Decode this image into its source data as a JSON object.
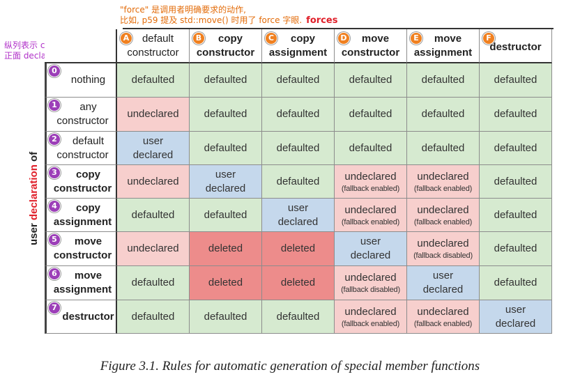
{
  "annotations": {
    "top_line1": "\"force\" 是调用者明确要求的动作,",
    "top_line2": "比如, p59 提及 std::move() 时用了 force 字眼.",
    "top_forces": "forces",
    "left_line1": "纵列表示 class 作者是否",
    "left_line2": "正面 declare 了此函数."
  },
  "side_label": {
    "part1": "user ",
    "part2": "declaration",
    "part3": " of"
  },
  "columns": [
    {
      "badge": "A",
      "line1": "default",
      "line2": "constructor",
      "bold": false
    },
    {
      "badge": "B",
      "line1": "copy",
      "line2": "constructor",
      "bold": true
    },
    {
      "badge": "C",
      "line1": "copy",
      "line2": "assignment",
      "bold": true
    },
    {
      "badge": "D",
      "line1": "move",
      "line2": "constructor",
      "bold": true
    },
    {
      "badge": "E",
      "line1": "move",
      "line2": "assignment",
      "bold": true
    },
    {
      "badge": "F",
      "line1": "destructor",
      "line2": "",
      "bold": true
    }
  ],
  "rows": [
    {
      "badge": "0",
      "line1": "nothing",
      "line2": "",
      "bold": false
    },
    {
      "badge": "1",
      "line1": "any",
      "line2": "constructor",
      "bold": false
    },
    {
      "badge": "2",
      "line1": "default",
      "line2": "constructor",
      "bold": false
    },
    {
      "badge": "3",
      "line1": "copy",
      "line2": "constructor",
      "bold": true
    },
    {
      "badge": "4",
      "line1": "copy",
      "line2": "assignment",
      "bold": true
    },
    {
      "badge": "5",
      "line1": "move",
      "line2": "constructor",
      "bold": true
    },
    {
      "badge": "6",
      "line1": "move",
      "line2": "assignment",
      "bold": true
    },
    {
      "badge": "7",
      "line1": "destructor",
      "line2": "",
      "bold": true
    }
  ],
  "cells": [
    [
      {
        "t": "defaulted",
        "c": "green"
      },
      {
        "t": "defaulted",
        "c": "green"
      },
      {
        "t": "defaulted",
        "c": "green"
      },
      {
        "t": "defaulted",
        "c": "green"
      },
      {
        "t": "defaulted",
        "c": "green"
      },
      {
        "t": "defaulted",
        "c": "green"
      }
    ],
    [
      {
        "t": "undeclared",
        "c": "pink"
      },
      {
        "t": "defaulted",
        "c": "green"
      },
      {
        "t": "defaulted",
        "c": "green"
      },
      {
        "t": "defaulted",
        "c": "green"
      },
      {
        "t": "defaulted",
        "c": "green"
      },
      {
        "t": "defaulted",
        "c": "green"
      }
    ],
    [
      {
        "t": "user",
        "t2": "declared",
        "c": "blue"
      },
      {
        "t": "defaulted",
        "c": "green"
      },
      {
        "t": "defaulted",
        "c": "green"
      },
      {
        "t": "defaulted",
        "c": "green"
      },
      {
        "t": "defaulted",
        "c": "green"
      },
      {
        "t": "defaulted",
        "c": "green"
      }
    ],
    [
      {
        "t": "undeclared",
        "c": "pink"
      },
      {
        "t": "user",
        "t2": "declared",
        "c": "blue"
      },
      {
        "t": "defaulted",
        "c": "green"
      },
      {
        "t": "undeclared",
        "f": "(fallback enabled)",
        "c": "pink"
      },
      {
        "t": "undeclared",
        "f": "(fallback enabled)",
        "c": "pink"
      },
      {
        "t": "defaulted",
        "c": "green"
      }
    ],
    [
      {
        "t": "defaulted",
        "c": "green"
      },
      {
        "t": "defaulted",
        "c": "green"
      },
      {
        "t": "user",
        "t2": "declared",
        "c": "blue"
      },
      {
        "t": "undeclared",
        "f": "(fallback enabled)",
        "c": "pink"
      },
      {
        "t": "undeclared",
        "f": "(fallback enabled)",
        "c": "pink"
      },
      {
        "t": "defaulted",
        "c": "green"
      }
    ],
    [
      {
        "t": "undeclared",
        "c": "pink"
      },
      {
        "t": "deleted",
        "c": "red"
      },
      {
        "t": "deleted",
        "c": "red"
      },
      {
        "t": "user",
        "t2": "declared",
        "c": "blue"
      },
      {
        "t": "undeclared",
        "f": "(fallback disabled)",
        "c": "pink"
      },
      {
        "t": "defaulted",
        "c": "green"
      }
    ],
    [
      {
        "t": "defaulted",
        "c": "green"
      },
      {
        "t": "deleted",
        "c": "red"
      },
      {
        "t": "deleted",
        "c": "red"
      },
      {
        "t": "undeclared",
        "f": "(fallback disabled)",
        "c": "pink"
      },
      {
        "t": "user",
        "t2": "declared",
        "c": "blue"
      },
      {
        "t": "defaulted",
        "c": "green"
      }
    ],
    [
      {
        "t": "defaulted",
        "c": "green"
      },
      {
        "t": "defaulted",
        "c": "green"
      },
      {
        "t": "defaulted",
        "c": "green"
      },
      {
        "t": "undeclared",
        "f": "(fallback enabled)",
        "c": "pink"
      },
      {
        "t": "undeclared",
        "f": "(fallback enabled)",
        "c": "pink"
      },
      {
        "t": "user",
        "t2": "declared",
        "c": "blue"
      }
    ]
  ],
  "caption": "Figure 3.1. Rules for automatic generation of special member functions"
}
